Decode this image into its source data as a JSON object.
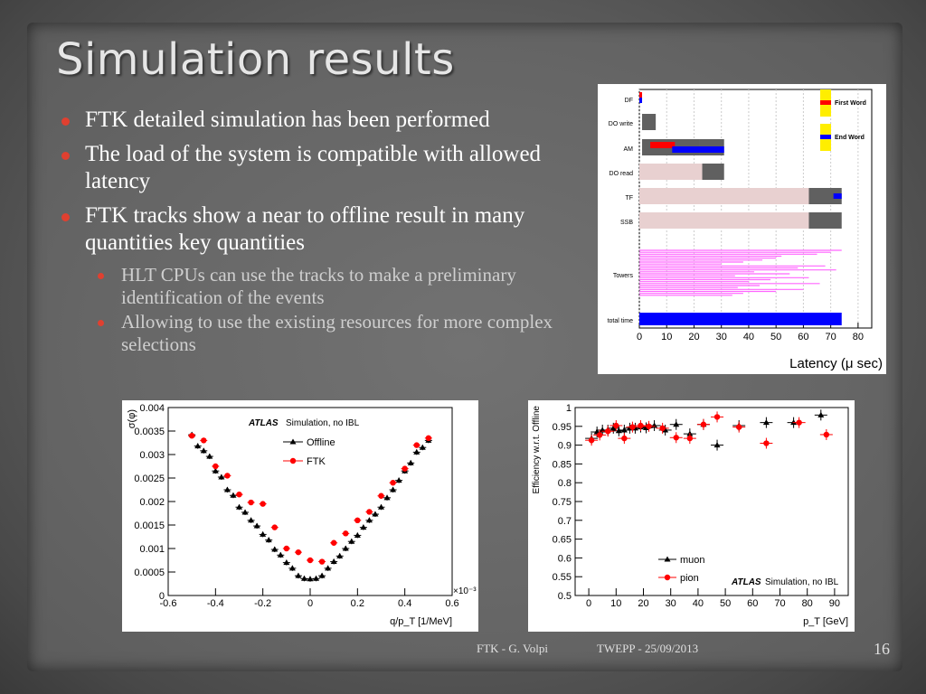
{
  "slide": {
    "title": "Simulation results",
    "bullets": [
      "FTK detailed simulation has been performed",
      "The load of the system is compatible with allowed latency",
      "FTK tracks show a near to offline result in many quantities key quantities"
    ],
    "sub_bullets": [
      "HLT CPUs can use the tracks to make a preliminary identification of the events",
      "Allowing to use the existing resources for more complex selections"
    ],
    "footer_author": "FTK - G. Volpi",
    "footer_event": "TWEPP - 25/09/2013",
    "page_number": "16"
  },
  "chart_data": [
    {
      "type": "bar",
      "subtype": "timeline",
      "xlabel": "Latency (μ sec)",
      "xlim": [
        0,
        85
      ],
      "xticks": [
        0,
        10,
        20,
        30,
        40,
        50,
        60,
        70,
        80
      ],
      "legend": [
        {
          "label": "First Word",
          "color": "#ff0000"
        },
        {
          "label": "End   Word",
          "color": "#0000ff"
        }
      ],
      "rows": [
        {
          "label": "DF",
          "spans": [
            {
              "start": 0,
              "end": 1,
              "color": "#ff0000"
            },
            {
              "start": 0,
              "end": 1,
              "color": "#0000ff"
            }
          ]
        },
        {
          "label": "DO write",
          "spans": [
            {
              "start": 1,
              "end": 6,
              "color": "#606060"
            }
          ]
        },
        {
          "label": "AM",
          "spans": [
            {
              "start": 1,
              "end": 22,
              "color": "#606060"
            },
            {
              "start": 22,
              "end": 31,
              "color": "#606060"
            },
            {
              "start": 4,
              "end": 13,
              "color": "#ff0000"
            },
            {
              "start": 12,
              "end": 31,
              "color": "#0000ff"
            }
          ]
        },
        {
          "label": "DO read",
          "spans": [
            {
              "start": 0,
              "end": 23,
              "color": "#e8d0d0"
            },
            {
              "start": 23,
              "end": 31,
              "color": "#606060"
            }
          ]
        },
        {
          "label": "TF",
          "spans": [
            {
              "start": 0,
              "end": 62,
              "color": "#e8d0d0"
            },
            {
              "start": 62,
              "end": 74,
              "color": "#606060"
            },
            {
              "start": 71,
              "end": 74,
              "color": "#0000ff"
            }
          ]
        },
        {
          "label": "SSB",
          "spans": [
            {
              "start": 0,
              "end": 62,
              "color": "#e8d0d0"
            },
            {
              "start": 62,
              "end": 74,
              "color": "#606060"
            }
          ]
        },
        {
          "label": "Towers",
          "spans": [
            {
              "start": 0,
              "end": 74,
              "color": "#ff66ff"
            }
          ]
        },
        {
          "label": "total time",
          "spans": [
            {
              "start": 0,
              "end": 74,
              "color": "#0000ff"
            }
          ]
        }
      ]
    },
    {
      "type": "scatter",
      "title": "ATLAS Simulation, no IBL",
      "xlabel": "q/p_T [1/MeV]",
      "ylabel": "σ(φ)",
      "x_scale_note": "×10⁻³",
      "xlim": [
        -0.6,
        0.6
      ],
      "ylim": [
        0,
        0.004
      ],
      "xticks": [
        -0.6,
        -0.4,
        -0.2,
        0,
        0.2,
        0.4,
        0.6
      ],
      "xtick_labels": [
        "-0.6",
        "-0.4",
        "-0.2",
        "0",
        "0.2",
        "0.4",
        "0.6"
      ],
      "yticks": [
        0,
        0.0005,
        0.001,
        0.0015,
        0.002,
        0.0025,
        0.003,
        0.0035,
        0.004
      ],
      "ytick_labels": [
        "0",
        "0.0005",
        "0.001",
        "0.0015",
        "0.002",
        "0.0025",
        "0.003",
        "0.0035",
        "0.004"
      ],
      "legend_position": "top-center",
      "series": [
        {
          "name": "Offline",
          "marker": "triangle",
          "color": "#000000",
          "x": [
            -0.5,
            -0.475,
            -0.45,
            -0.425,
            -0.4,
            -0.375,
            -0.35,
            -0.325,
            -0.3,
            -0.275,
            -0.25,
            -0.225,
            -0.2,
            -0.175,
            -0.15,
            -0.125,
            -0.1,
            -0.075,
            -0.05,
            -0.025,
            0,
            0.025,
            0.05,
            0.075,
            0.1,
            0.125,
            0.15,
            0.175,
            0.2,
            0.225,
            0.25,
            0.275,
            0.3,
            0.325,
            0.35,
            0.375,
            0.4,
            0.425,
            0.45,
            0.475,
            0.5
          ],
          "y": [
            0.00342,
            0.00318,
            0.00308,
            0.00296,
            0.00265,
            0.00252,
            0.00225,
            0.00213,
            0.00188,
            0.00177,
            0.0016,
            0.00148,
            0.0013,
            0.00118,
            0.00098,
            0.00086,
            0.0007,
            0.00058,
            0.00042,
            0.00036,
            0.00035,
            0.00036,
            0.00042,
            0.00058,
            0.00072,
            0.00084,
            0.001,
            0.00115,
            0.00128,
            0.00145,
            0.0016,
            0.00173,
            0.00188,
            0.00208,
            0.00225,
            0.00245,
            0.00265,
            0.00282,
            0.00305,
            0.00315,
            0.0033
          ]
        },
        {
          "name": "FTK",
          "marker": "circle",
          "color": "#ff0000",
          "x": [
            -0.5,
            -0.45,
            -0.4,
            -0.35,
            -0.3,
            -0.25,
            -0.2,
            -0.15,
            -0.1,
            -0.05,
            0,
            0.05,
            0.1,
            0.15,
            0.2,
            0.25,
            0.3,
            0.35,
            0.4,
            0.45,
            0.5
          ],
          "y": [
            0.0034,
            0.0033,
            0.00275,
            0.00255,
            0.00215,
            0.00198,
            0.00195,
            0.00145,
            0.001,
            0.00092,
            0.00075,
            0.00072,
            0.00112,
            0.00132,
            0.0016,
            0.00178,
            0.00212,
            0.0024,
            0.0027,
            0.0032,
            0.00335
          ]
        }
      ]
    },
    {
      "type": "scatter",
      "title": "ATLAS Simulation, no IBL",
      "xlabel": "p_T [GeV]",
      "ylabel": "Efficiency w.r.t. Offline",
      "xlim": [
        -5,
        95
      ],
      "ylim": [
        0.5,
        1.0
      ],
      "xticks": [
        0,
        10,
        20,
        30,
        40,
        50,
        60,
        70,
        80,
        90
      ],
      "yticks": [
        0.5,
        0.55,
        0.6,
        0.65,
        0.7,
        0.75,
        0.8,
        0.85,
        0.9,
        0.95,
        1.0
      ],
      "ytick_labels": [
        "0.5",
        "0.55",
        "0.6",
        "0.65",
        "0.7",
        "0.75",
        "0.8",
        "0.85",
        "0.9",
        "0.95",
        "1"
      ],
      "legend_position": "bottom-left",
      "series": [
        {
          "name": "muon",
          "marker": "triangle",
          "color": "#000000",
          "x": [
            1,
            3,
            5,
            7,
            9,
            11,
            13,
            15,
            17,
            19,
            21,
            24,
            28,
            32,
            37,
            42,
            47,
            55,
            65,
            75,
            85
          ],
          "y": [
            0.918,
            0.935,
            0.94,
            0.94,
            0.945,
            0.938,
            0.94,
            0.945,
            0.945,
            0.948,
            0.946,
            0.952,
            0.94,
            0.955,
            0.93,
            0.955,
            0.9,
            0.952,
            0.96,
            0.96,
            0.98
          ]
        },
        {
          "name": "pion",
          "marker": "circle",
          "color": "#ff0000",
          "x": [
            1,
            4,
            7,
            10,
            13,
            16,
            19,
            22,
            27,
            32,
            37,
            42,
            47,
            55,
            65,
            77,
            87
          ],
          "y": [
            0.913,
            0.927,
            0.937,
            0.952,
            0.918,
            0.948,
            0.952,
            0.95,
            0.945,
            0.92,
            0.918,
            0.955,
            0.975,
            0.948,
            0.905,
            0.96,
            0.928
          ]
        }
      ]
    }
  ]
}
